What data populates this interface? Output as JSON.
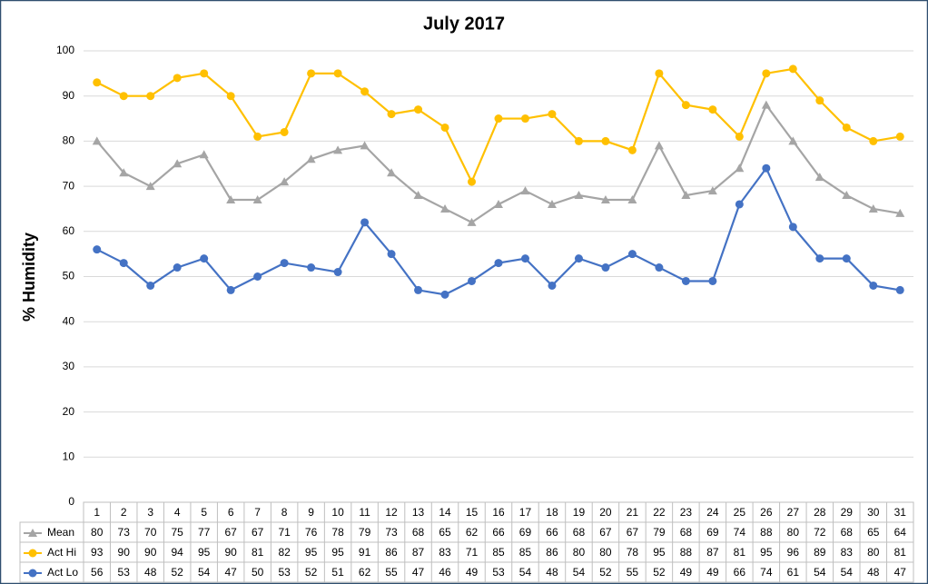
{
  "chart_data": {
    "type": "line",
    "title": "July 2017",
    "y_label": "% Humidity",
    "categories": [
      "1",
      "2",
      "3",
      "4",
      "5",
      "6",
      "7",
      "8",
      "9",
      "10",
      "11",
      "12",
      "13",
      "14",
      "15",
      "16",
      "17",
      "18",
      "19",
      "20",
      "21",
      "22",
      "23",
      "24",
      "25",
      "26",
      "27",
      "28",
      "29",
      "30",
      "31"
    ],
    "series": [
      {
        "name": "Mean",
        "color": "#a5a5a5",
        "marker": "triangle",
        "values": [
          80,
          73,
          70,
          75,
          77,
          67,
          67,
          71,
          76,
          78,
          79,
          73,
          68,
          65,
          62,
          66,
          69,
          66,
          68,
          67,
          67,
          79,
          68,
          69,
          74,
          88,
          80,
          72,
          68,
          65,
          64
        ]
      },
      {
        "name": "Act Hi",
        "color": "#ffc000",
        "marker": "circle",
        "values": [
          93,
          90,
          90,
          94,
          95,
          90,
          81,
          82,
          95,
          95,
          91,
          86,
          87,
          83,
          71,
          85,
          85,
          86,
          80,
          80,
          78,
          95,
          88,
          87,
          81,
          95,
          96,
          89,
          83,
          80,
          81
        ]
      },
      {
        "name": "Act Lo",
        "color": "#4472c4",
        "marker": "circle",
        "values": [
          56,
          53,
          48,
          52,
          54,
          47,
          50,
          53,
          52,
          51,
          62,
          55,
          47,
          46,
          49,
          53,
          54,
          48,
          54,
          52,
          55,
          52,
          49,
          49,
          66,
          74,
          61,
          54,
          54,
          48,
          47
        ]
      }
    ],
    "ylim": [
      0,
      100
    ],
    "yticks": [
      0,
      10,
      20,
      30,
      40,
      50,
      60,
      70,
      80,
      90,
      100
    ],
    "grid": true
  }
}
